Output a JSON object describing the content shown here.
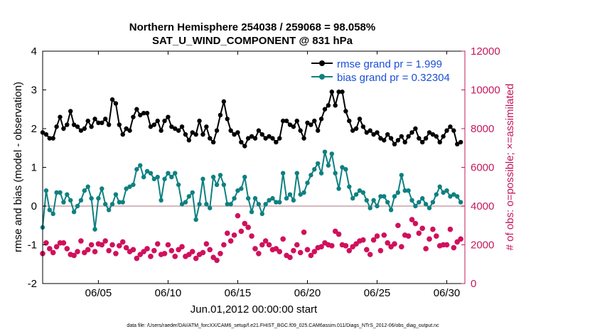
{
  "chart_data": {
    "type": "line",
    "title": "Northern Hemisphere 254038 / 259068 = 98.058%",
    "subtitle": "SAT_U_WIND_COMPONENT @ 831 hPa",
    "xlabel": "Jun.01,2012 00:00:00 start",
    "ylabel": "rmse and bias (model - observation)",
    "y2label": "# of obs: o=possible; ×=assimilated",
    "footnote": "data file: /Users/raeder/DAI/ATM_forcXX/CAM6_setup/f.e21.FHIST_BGC.f09_025.CAM6assim.011/Diags_NTrS_2012-06/obs_diag_output.nc",
    "xlim": [
      1.0,
      31.3
    ],
    "ylim": [
      -2,
      4
    ],
    "y2lim": [
      0,
      12000
    ],
    "x_ticks": [
      5,
      10,
      15,
      20,
      25,
      30
    ],
    "x_tick_labels": [
      "06/05",
      "06/10",
      "06/15",
      "06/20",
      "06/25",
      "06/30"
    ],
    "y_ticks": [
      -2,
      -1,
      0,
      1,
      2,
      3,
      4
    ],
    "y_tick_labels": [
      "-2",
      "-1",
      "0",
      "1",
      "2",
      "3",
      "4"
    ],
    "y2_ticks": [
      0,
      2000,
      4000,
      6000,
      8000,
      10000,
      12000
    ],
    "y2_tick_labels": [
      "0",
      "2000",
      "4000",
      "6000",
      "8000",
      "10000",
      "12000"
    ],
    "legend_position": "top-right",
    "colors": {
      "rmse": "#000000",
      "bias": "#0e8080",
      "obs": "#d0105c",
      "zero_line": "#c8a0a8",
      "right_axis": "#c2185b",
      "legend_text": "#1a4fd6"
    },
    "series": [
      {
        "name": "rmse grand pr = 1.999",
        "x": [
          1.0,
          1.25,
          1.5,
          1.75,
          2.0,
          2.25,
          2.5,
          2.75,
          3.0,
          3.25,
          3.5,
          3.75,
          4.0,
          4.25,
          4.5,
          4.75,
          5.0,
          5.25,
          5.5,
          5.75,
          6.0,
          6.25,
          6.5,
          6.75,
          7.0,
          7.25,
          7.5,
          7.75,
          8.0,
          8.25,
          8.5,
          8.75,
          9.0,
          9.25,
          9.5,
          9.75,
          10.0,
          10.25,
          10.5,
          10.75,
          11.0,
          11.25,
          11.5,
          11.75,
          12.0,
          12.25,
          12.5,
          12.75,
          13.0,
          13.25,
          13.5,
          13.75,
          14.0,
          14.25,
          14.5,
          14.75,
          15.0,
          15.25,
          15.5,
          15.75,
          16.0,
          16.25,
          16.5,
          16.75,
          17.0,
          17.25,
          17.5,
          17.75,
          18.0,
          18.25,
          18.5,
          18.75,
          19.0,
          19.25,
          19.5,
          19.75,
          20.0,
          20.25,
          20.5,
          20.75,
          21.0,
          21.25,
          21.5,
          21.75,
          22.0,
          22.25,
          22.5,
          22.75,
          23.0,
          23.25,
          23.5,
          23.75,
          24.0,
          24.25,
          24.5,
          24.75,
          25.0,
          25.25,
          25.5,
          25.75,
          26.0,
          26.25,
          26.5,
          26.75,
          27.0,
          27.25,
          27.5,
          27.75,
          28.0,
          28.25,
          28.5,
          28.75,
          29.0,
          29.25,
          29.5,
          29.75,
          30.0,
          30.25,
          30.5,
          30.75,
          31.0
        ],
        "values": [
          1.9,
          1.85,
          1.75,
          1.75,
          2.05,
          2.3,
          2.0,
          2.1,
          2.45,
          2.1,
          2.05,
          1.95,
          2.0,
          2.2,
          2.05,
          2.25,
          2.15,
          2.15,
          2.25,
          2.1,
          2.75,
          2.65,
          2.1,
          1.85,
          2.0,
          1.95,
          2.3,
          2.5,
          2.35,
          2.4,
          2.4,
          2.05,
          2.1,
          2.2,
          1.95,
          2.2,
          2.3,
          2.05,
          2.0,
          1.95,
          2.05,
          1.85,
          1.7,
          1.9,
          1.85,
          2.2,
          1.85,
          2.05,
          1.75,
          1.65,
          1.95,
          2.35,
          2.7,
          2.25,
          1.95,
          1.85,
          1.9,
          1.65,
          1.55,
          1.75,
          1.8,
          1.75,
          1.95,
          1.85,
          1.75,
          1.8,
          1.75,
          1.65,
          1.75,
          2.2,
          2.2,
          2.1,
          2.05,
          2.2,
          1.95,
          1.75,
          2.15,
          2.1,
          2.2,
          1.95,
          2.25,
          2.5,
          2.6,
          2.95,
          2.6,
          2.95,
          2.95,
          2.45,
          2.2,
          1.95,
          2.0,
          2.25,
          2.05,
          1.9,
          1.95,
          1.85,
          1.9,
          1.75,
          1.7,
          1.85,
          1.75,
          1.6,
          1.7,
          1.8,
          1.65,
          1.8,
          1.9,
          2.0,
          1.75,
          1.65,
          1.75,
          1.9,
          1.85,
          1.8,
          1.65,
          1.8,
          1.95,
          2.05,
          1.95,
          1.6,
          1.65
        ],
        "color": "#000000"
      },
      {
        "name": "bias grand pr = 0.32304",
        "x": [
          1.0,
          1.25,
          1.5,
          1.75,
          2.0,
          2.25,
          2.5,
          2.75,
          3.0,
          3.25,
          3.5,
          3.75,
          4.0,
          4.25,
          4.5,
          4.75,
          5.0,
          5.25,
          5.5,
          5.75,
          6.0,
          6.25,
          6.5,
          6.75,
          7.0,
          7.25,
          7.5,
          7.75,
          8.0,
          8.25,
          8.5,
          8.75,
          9.0,
          9.25,
          9.5,
          9.75,
          10.0,
          10.25,
          10.5,
          10.75,
          11.0,
          11.25,
          11.5,
          11.75,
          12.0,
          12.25,
          12.5,
          12.75,
          13.0,
          13.25,
          13.5,
          13.75,
          14.0,
          14.25,
          14.5,
          14.75,
          15.0,
          15.25,
          15.5,
          15.75,
          16.0,
          16.25,
          16.5,
          16.75,
          17.0,
          17.25,
          17.5,
          17.75,
          18.0,
          18.25,
          18.5,
          18.75,
          19.0,
          19.25,
          19.5,
          19.75,
          20.0,
          20.25,
          20.5,
          20.75,
          21.0,
          21.25,
          21.5,
          21.75,
          22.0,
          22.25,
          22.5,
          22.75,
          23.0,
          23.25,
          23.5,
          23.75,
          24.0,
          24.25,
          24.5,
          24.75,
          25.0,
          25.25,
          25.5,
          25.75,
          26.0,
          26.25,
          26.5,
          26.75,
          27.0,
          27.25,
          27.5,
          27.75,
          28.0,
          28.25,
          28.5,
          28.75,
          29.0,
          29.25,
          29.5,
          29.75,
          30.0,
          30.25,
          30.5,
          30.75,
          31.0
        ],
        "values": [
          -0.55,
          0.4,
          -0.1,
          -0.2,
          0.35,
          0.35,
          0.1,
          0.3,
          0.15,
          -0.15,
          0.0,
          0.15,
          0.4,
          0.5,
          0.2,
          -0.6,
          0.2,
          0.45,
          0.05,
          -0.1,
          0.05,
          0.3,
          0.1,
          0.1,
          0.45,
          0.5,
          0.55,
          0.95,
          1.05,
          0.75,
          0.9,
          0.85,
          0.7,
          0.75,
          0.15,
          0.7,
          0.85,
          0.75,
          0.85,
          0.55,
          0.05,
          0.1,
          0.25,
          0.35,
          -0.35,
          0.05,
          0.7,
          0.05,
          -0.05,
          0.75,
          0.55,
          0.8,
          0.55,
          0.05,
          0.05,
          0.2,
          0.4,
          0.45,
          0.75,
          0.2,
          -0.15,
          0.2,
          0.05,
          -0.2,
          0.05,
          0.15,
          0.2,
          0.1,
          0.1,
          0.85,
          0.2,
          0.3,
          0.15,
          0.85,
          0.3,
          0.35,
          0.6,
          0.8,
          0.95,
          1.1,
          0.85,
          1.4,
          1.05,
          1.35,
          0.85,
          0.45,
          1.0,
          0.95,
          0.5,
          0.2,
          0.3,
          0.4,
          0.35,
          0.15,
          -0.05,
          0.15,
          0.0,
          0.25,
          0.25,
          0.1,
          -0.1,
          0.25,
          0.35,
          0.8,
          0.4,
          0.4,
          0.15,
          0.0,
          0.1,
          0.2,
          0.05,
          -0.05,
          0.1,
          0.3,
          0.5,
          0.35,
          0.4,
          0.25,
          0.3,
          0.25,
          0.1
        ],
        "color": "#0e8080"
      },
      {
        "name": "obs_assimilated",
        "x": [
          1.0,
          1.25,
          1.5,
          1.75,
          2.0,
          2.25,
          2.5,
          2.75,
          3.0,
          3.25,
          3.5,
          3.75,
          4.0,
          4.25,
          4.5,
          4.75,
          5.0,
          5.25,
          5.5,
          5.75,
          6.0,
          6.25,
          6.5,
          6.75,
          7.0,
          7.25,
          7.5,
          7.75,
          8.0,
          8.25,
          8.5,
          8.75,
          9.0,
          9.25,
          9.5,
          9.75,
          10.0,
          10.25,
          10.5,
          10.75,
          11.0,
          11.25,
          11.5,
          11.75,
          12.0,
          12.25,
          12.5,
          12.75,
          13.0,
          13.25,
          13.5,
          13.75,
          14.0,
          14.25,
          14.5,
          14.75,
          15.0,
          15.25,
          15.5,
          15.75,
          16.0,
          16.25,
          16.5,
          16.75,
          17.0,
          17.25,
          17.5,
          17.75,
          18.0,
          18.25,
          18.5,
          18.75,
          19.0,
          19.25,
          19.5,
          19.75,
          20.0,
          20.25,
          20.5,
          20.75,
          21.0,
          21.25,
          21.5,
          21.75,
          22.0,
          22.25,
          22.5,
          22.75,
          23.0,
          23.25,
          23.5,
          23.75,
          24.0,
          24.25,
          24.5,
          24.75,
          25.0,
          25.25,
          25.5,
          25.75,
          26.0,
          26.25,
          26.5,
          26.75,
          27.0,
          27.25,
          27.5,
          27.75,
          28.0,
          28.25,
          28.5,
          28.75,
          29.0,
          29.25,
          29.5,
          29.75,
          30.0,
          30.25,
          30.5,
          30.75,
          31.0
        ],
        "values": [
          1550,
          2100,
          1800,
          1600,
          1900,
          2100,
          2100,
          1800,
          1500,
          1450,
          1650,
          2200,
          1600,
          1750,
          2000,
          1650,
          2050,
          2000,
          2200,
          1700,
          2000,
          1550,
          1950,
          2150,
          1850,
          1650,
          1750,
          1300,
          1500,
          1650,
          1800,
          1400,
          1700,
          2050,
          1500,
          1550,
          2000,
          1700,
          1400,
          1750,
          1900,
          1400,
          1500,
          1650,
          1300,
          1500,
          1600,
          2050,
          1750,
          1350,
          1200,
          1550,
          2000,
          2600,
          2200,
          2500,
          3500,
          2700,
          3100,
          2900,
          2450,
          1800,
          1550,
          2000,
          2200,
          2000,
          1750,
          1800,
          1650,
          2300,
          1450,
          1350,
          1700,
          2000,
          1600,
          2650,
          1750,
          1450,
          1650,
          1850,
          1900,
          2100,
          2000,
          1950,
          2700,
          2550,
          2000,
          1950,
          1700,
          1900,
          2050,
          2200,
          2250,
          1750,
          1500,
          2250,
          2450,
          1700,
          2500,
          2100,
          1900,
          2050,
          3000,
          1900,
          2500,
          2450,
          3300,
          3100,
          2600,
          2850,
          1800,
          2300,
          2800,
          2450,
          1950,
          2000,
          2000,
          2800,
          1850,
          2150,
          2300
        ],
        "color": "#d0105c"
      },
      {
        "name": "obs_possible",
        "x": [
          1.0,
          1.25,
          1.5,
          1.75,
          2.0,
          2.25,
          2.5,
          2.75,
          3.0,
          3.25,
          3.5,
          3.75,
          4.0,
          4.25,
          4.5,
          4.75,
          5.0,
          5.25,
          5.5,
          5.75,
          6.0,
          6.25,
          6.5,
          6.75,
          7.0,
          7.25,
          7.5,
          7.75,
          8.0,
          8.25,
          8.5,
          8.75,
          9.0,
          9.25,
          9.5,
          9.75,
          10.0,
          10.25,
          10.5,
          10.75,
          11.0,
          11.25,
          11.5,
          11.75,
          12.0,
          12.25,
          12.5,
          12.75,
          13.0,
          13.25,
          13.5,
          13.75,
          14.0,
          14.25,
          14.5,
          14.75,
          15.0,
          15.25,
          15.5,
          15.75,
          16.0,
          16.25,
          16.5,
          16.75,
          17.0,
          17.25,
          17.5,
          17.75,
          18.0,
          18.25,
          18.5,
          18.75,
          19.0,
          19.25,
          19.5,
          19.75,
          20.0,
          20.25,
          20.5,
          20.75,
          21.0,
          21.25,
          21.5,
          21.75,
          22.0,
          22.25,
          22.5,
          22.75,
          23.0,
          23.25,
          23.5,
          23.75,
          24.0,
          24.25,
          24.5,
          24.75,
          25.0,
          25.25,
          25.5,
          25.75,
          26.0,
          26.25,
          26.5,
          26.75,
          27.0,
          27.25,
          27.5,
          27.75,
          28.0,
          28.25,
          28.5,
          28.75,
          29.0,
          29.25,
          29.5,
          29.75,
          30.0,
          30.25,
          30.5,
          30.75,
          31.0
        ],
        "values": [
          1550,
          2100,
          1800,
          1600,
          1900,
          2100,
          2100,
          1800,
          1500,
          1450,
          1650,
          2200,
          1600,
          1750,
          2000,
          1650,
          2050,
          2000,
          2200,
          1700,
          2000,
          1550,
          1950,
          2150,
          1850,
          1650,
          1750,
          1300,
          1500,
          1650,
          1800,
          1400,
          1700,
          2050,
          1500,
          1550,
          2000,
          1700,
          1400,
          1750,
          1900,
          1400,
          1500,
          1650,
          1300,
          1500,
          1600,
          2050,
          1750,
          1350,
          1200,
          1550,
          2000,
          2600,
          2200,
          2500,
          3500,
          2700,
          3100,
          2900,
          2450,
          1800,
          1550,
          2000,
          2200,
          2000,
          1750,
          1800,
          1650,
          2300,
          1450,
          1350,
          1700,
          2000,
          1600,
          2650,
          1750,
          1450,
          1650,
          1850,
          1900,
          2100,
          2000,
          1950,
          2700,
          2550,
          2000,
          1950,
          1700,
          1900,
          2050,
          2200,
          2250,
          1750,
          1500,
          2250,
          2450,
          1700,
          2500,
          2100,
          1900,
          2050,
          3000,
          1900,
          2500,
          2450,
          3300,
          3100,
          2600,
          2850,
          1800,
          2300,
          2800,
          2450,
          1950,
          2000,
          2000,
          2800,
          1850,
          2150,
          2300
        ],
        "color": "#d0105c"
      }
    ]
  }
}
